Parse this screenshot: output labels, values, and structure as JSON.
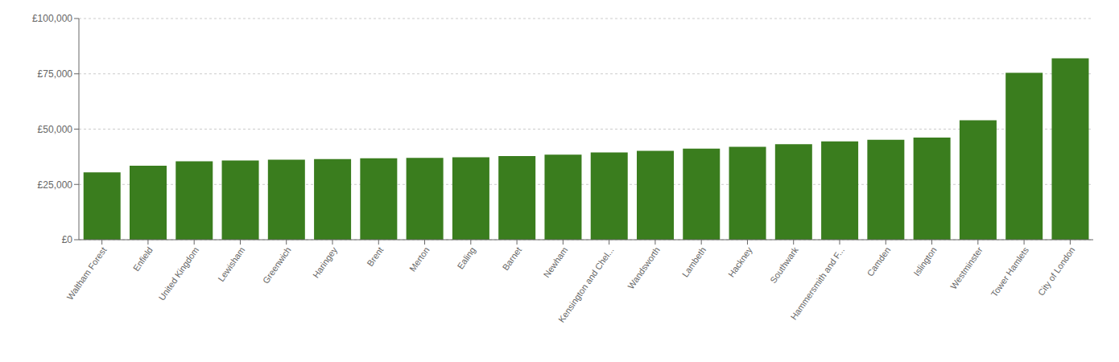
{
  "chart_data": {
    "type": "bar",
    "categories": [
      "Waltham Forest",
      "Enfield",
      "United Kingdom",
      "Lewisham",
      "Greenwich",
      "Haringey",
      "Brent",
      "Merton",
      "Ealing",
      "Barnet",
      "Newham",
      "Kensington and Chel...",
      "Wandsworth",
      "Lambeth",
      "Hackney",
      "Southwark",
      "Hammersmith and F...",
      "Camden",
      "Islington",
      "Westminster",
      "Tower Hamlets",
      "City of London"
    ],
    "values": [
      30500,
      33500,
      35500,
      35800,
      36200,
      36500,
      36800,
      37000,
      37300,
      37800,
      38500,
      39500,
      40200,
      41200,
      42000,
      43200,
      44500,
      45200,
      46200,
      54000,
      75500,
      82000
    ],
    "color": "#3a7d1e",
    "ylim": [
      0,
      100000
    ],
    "yticks": [
      {
        "value": 0,
        "label": "£0"
      },
      {
        "value": 25000,
        "label": "£25,000"
      },
      {
        "value": 50000,
        "label": "£50,000"
      },
      {
        "value": 75000,
        "label": "£75,000"
      },
      {
        "value": 100000,
        "label": "£100,000"
      }
    ],
    "grid": true
  }
}
